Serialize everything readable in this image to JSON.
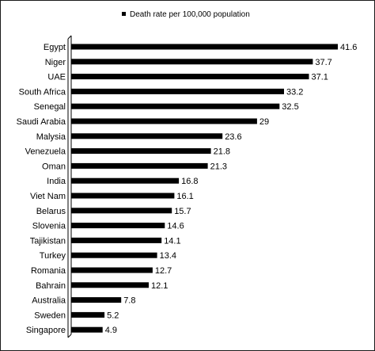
{
  "chart_data": {
    "type": "bar",
    "orientation": "horizontal",
    "categories": [
      "Egypt",
      "Niger",
      "UAE",
      "South Africa",
      "Senegal",
      "Saudi Arabia",
      "Malysia",
      "Venezuela",
      "Oman",
      "India",
      "Viet Nam",
      "Belarus",
      "Slovenia",
      "Tajikistan",
      "Turkey",
      "Romania",
      "Bahrain",
      "Australia",
      "Sweden",
      "Singapore"
    ],
    "series": [
      {
        "name": "Death rate per 100,000 population",
        "values": [
          41.6,
          37.7,
          37.1,
          33.2,
          32.5,
          29,
          23.6,
          21.8,
          21.3,
          16.8,
          16.1,
          15.7,
          14.6,
          14.1,
          13.4,
          12.7,
          12.1,
          7.8,
          5.2,
          4.9
        ],
        "value_labels": [
          "41.6",
          "37.7",
          "37.1",
          "33.2",
          "32.5",
          "29",
          "23.6",
          "21.8",
          "21.3",
          "16.8",
          "16.1",
          "15.7",
          "14.6",
          "14.1",
          "13.4",
          "12.7",
          "12.1",
          "7.8",
          "5.2",
          "4.9"
        ],
        "color": "#000000"
      }
    ],
    "title": "",
    "xlabel": "",
    "ylabel": "",
    "xlim": [
      0,
      42
    ],
    "grid": false,
    "legend": {
      "position": "top-right",
      "label": "Death rate per 100,000 population"
    }
  }
}
